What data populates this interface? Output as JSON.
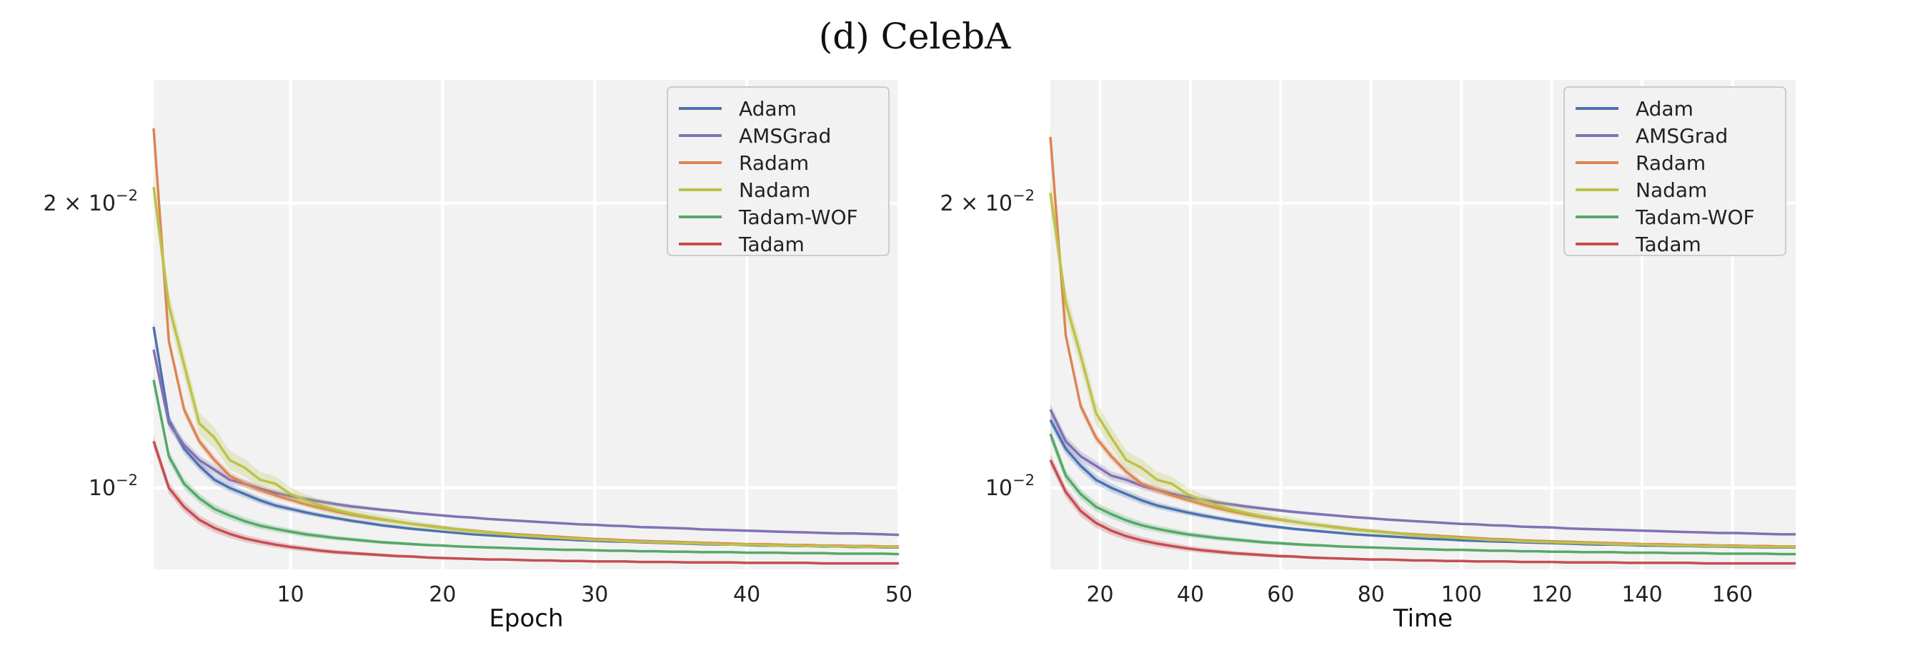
{
  "figure": {
    "title": "(d) CelebA"
  },
  "chart_data": [
    {
      "type": "line",
      "xlabel": "Epoch",
      "ylabel": "",
      "yscale": "log",
      "xlim": [
        1,
        50
      ],
      "ylim": [
        0.0082,
        0.027
      ],
      "xticks": [
        10,
        20,
        30,
        40,
        50
      ],
      "yticks": [
        {
          "value": 0.02,
          "base": "2 × 10",
          "exp": "−2"
        },
        {
          "value": 0.01,
          "base": "10",
          "exp": "−2"
        }
      ],
      "grid": true,
      "legend_position": "top-right",
      "x": [
        1,
        2,
        3,
        4,
        5,
        6,
        7,
        8,
        9,
        10,
        11,
        12,
        13,
        14,
        15,
        16,
        17,
        18,
        19,
        20,
        21,
        22,
        23,
        24,
        25,
        26,
        27,
        28,
        29,
        30,
        31,
        32,
        33,
        34,
        35,
        36,
        37,
        38,
        39,
        40,
        41,
        42,
        43,
        44,
        45,
        46,
        47,
        48,
        49,
        50
      ],
      "series": [
        {
          "name": "Adam",
          "color": "#4c72b0",
          "values": [
            0.0148,
            0.0118,
            0.011,
            0.01055,
            0.0102,
            0.01,
            0.00985,
            0.0097,
            0.00958,
            0.0095,
            0.00942,
            0.00935,
            0.00929,
            0.00923,
            0.00918,
            0.00913,
            0.00909,
            0.00905,
            0.00902,
            0.00899,
            0.00896,
            0.00893,
            0.00891,
            0.00889,
            0.00887,
            0.00885,
            0.00883,
            0.00882,
            0.0088,
            0.00879,
            0.00878,
            0.00877,
            0.00876,
            0.00875,
            0.00874,
            0.00873,
            0.00872,
            0.00871,
            0.00871,
            0.0087,
            0.00869,
            0.00869,
            0.00868,
            0.00868,
            0.00867,
            0.00867,
            0.00866,
            0.00866,
            0.00865,
            0.00865
          ]
        },
        {
          "name": "AMSGrad",
          "color": "#8172b3",
          "values": [
            0.014,
            0.0117,
            0.0111,
            0.0107,
            0.01045,
            0.0102,
            0.0101,
            0.00998,
            0.00988,
            0.0098,
            0.00973,
            0.00967,
            0.00961,
            0.00956,
            0.00952,
            0.00948,
            0.00945,
            0.00941,
            0.00938,
            0.00935,
            0.00932,
            0.0093,
            0.00927,
            0.00925,
            0.00923,
            0.00921,
            0.00919,
            0.00917,
            0.00915,
            0.00914,
            0.00912,
            0.00911,
            0.00909,
            0.00908,
            0.00907,
            0.00906,
            0.00904,
            0.00903,
            0.00902,
            0.00901,
            0.009,
            0.00899,
            0.00898,
            0.00897,
            0.00896,
            0.00895,
            0.00895,
            0.00894,
            0.00893,
            0.00892
          ]
        },
        {
          "name": "Radam",
          "color": "#dd8452",
          "values": [
            0.024,
            0.0143,
            0.0121,
            0.0112,
            0.0107,
            0.0103,
            0.0101,
            0.00995,
            0.00982,
            0.00971,
            0.00961,
            0.00952,
            0.00944,
            0.00937,
            0.00931,
            0.00926,
            0.00921,
            0.00916,
            0.00912,
            0.00908,
            0.00904,
            0.00901,
            0.00898,
            0.00895,
            0.00893,
            0.00891,
            0.00889,
            0.00887,
            0.00885,
            0.00883,
            0.00882,
            0.0088,
            0.00879,
            0.00878,
            0.00877,
            0.00876,
            0.00875,
            0.00874,
            0.00873,
            0.00872,
            0.00872,
            0.00871,
            0.0087,
            0.0087,
            0.00869,
            0.00869,
            0.00868,
            0.00868,
            0.00867,
            0.00867
          ]
        },
        {
          "name": "Nadam",
          "color": "#bcc24a",
          "values": [
            0.0208,
            0.0156,
            0.0135,
            0.0117,
            0.0113,
            0.0107,
            0.0105,
            0.0102,
            0.0101,
            0.00985,
            0.0097,
            0.00958,
            0.00948,
            0.0094,
            0.00933,
            0.00927,
            0.00921,
            0.00916,
            0.00911,
            0.00907,
            0.00903,
            0.009,
            0.00897,
            0.00894,
            0.00891,
            0.00889,
            0.00887,
            0.00885,
            0.00883,
            0.00881,
            0.0088,
            0.00878,
            0.00877,
            0.00876,
            0.00875,
            0.00874,
            0.00873,
            0.00872,
            0.00871,
            0.00871,
            0.0087,
            0.00869,
            0.00869,
            0.00868,
            0.00868,
            0.00867,
            0.00867,
            0.00866,
            0.00866,
            0.00866
          ]
        },
        {
          "name": "Tadam-WOF",
          "color": "#55a868",
          "values": [
            0.013,
            0.0108,
            0.0101,
            0.00975,
            0.0095,
            0.00935,
            0.00922,
            0.00912,
            0.00905,
            0.00899,
            0.00893,
            0.00889,
            0.00885,
            0.00882,
            0.00879,
            0.00876,
            0.00874,
            0.00872,
            0.0087,
            0.00869,
            0.00867,
            0.00866,
            0.00865,
            0.00864,
            0.00863,
            0.00862,
            0.00861,
            0.0086,
            0.0086,
            0.00859,
            0.00858,
            0.00858,
            0.00857,
            0.00857,
            0.00856,
            0.00856,
            0.00855,
            0.00855,
            0.00855,
            0.00854,
            0.00854,
            0.00854,
            0.00853,
            0.00853,
            0.00853,
            0.00852,
            0.00852,
            0.00852,
            0.00852,
            0.00851
          ]
        },
        {
          "name": "Tadam",
          "color": "#c44e52",
          "values": [
            0.0112,
            0.01,
            0.00955,
            0.00925,
            0.00907,
            0.00894,
            0.00884,
            0.00877,
            0.00871,
            0.00866,
            0.00862,
            0.00858,
            0.00855,
            0.00853,
            0.00851,
            0.00849,
            0.00847,
            0.00846,
            0.00844,
            0.00843,
            0.00842,
            0.00841,
            0.0084,
            0.0084,
            0.00839,
            0.00838,
            0.00838,
            0.00837,
            0.00837,
            0.00836,
            0.00836,
            0.00836,
            0.00835,
            0.00835,
            0.00835,
            0.00834,
            0.00834,
            0.00834,
            0.00834,
            0.00833,
            0.00833,
            0.00833,
            0.00833,
            0.00833,
            0.00832,
            0.00832,
            0.00832,
            0.00832,
            0.00832,
            0.00832
          ]
        }
      ]
    },
    {
      "type": "line",
      "xlabel": "Time",
      "ylabel": "",
      "yscale": "log",
      "xlim": [
        9,
        174
      ],
      "ylim": [
        0.0082,
        0.027
      ],
      "xticks": [
        20,
        40,
        60,
        80,
        100,
        120,
        140,
        160
      ],
      "yticks": [
        {
          "value": 0.02,
          "base": "2 × 10",
          "exp": "−2"
        },
        {
          "value": 0.01,
          "base": "10",
          "exp": "−2"
        }
      ],
      "grid": true,
      "legend_position": "top-right",
      "x": [
        9,
        12.4,
        15.7,
        19.1,
        22.5,
        25.8,
        29.2,
        32.6,
        35.9,
        39.3,
        42.7,
        46,
        49.4,
        52.8,
        56.1,
        59.5,
        62.9,
        66.2,
        69.6,
        73,
        76.3,
        79.7,
        83.1,
        86.4,
        89.8,
        93.2,
        96.5,
        99.9,
        103.3,
        106.6,
        110,
        113.4,
        116.7,
        120.1,
        123.5,
        126.8,
        130.2,
        133.6,
        136.9,
        140.3,
        143.7,
        147,
        150.4,
        153.8,
        157.1,
        160.5,
        163.9,
        167.2,
        170.6,
        174
      ],
      "series": [
        {
          "name": "Adam",
          "color": "#4c72b0",
          "values": [
            0.0118,
            0.011,
            0.01055,
            0.0102,
            0.01,
            0.00985,
            0.0097,
            0.00958,
            0.0095,
            0.00942,
            0.00935,
            0.00929,
            0.00923,
            0.00918,
            0.00913,
            0.00909,
            0.00905,
            0.00902,
            0.00899,
            0.00896,
            0.00893,
            0.00891,
            0.00889,
            0.00887,
            0.00885,
            0.00883,
            0.00882,
            0.0088,
            0.00879,
            0.00878,
            0.00877,
            0.00876,
            0.00875,
            0.00874,
            0.00873,
            0.00872,
            0.00871,
            0.00871,
            0.0087,
            0.00869,
            0.00869,
            0.00868,
            0.00868,
            0.00867,
            0.00867,
            0.00866,
            0.00866,
            0.00865,
            0.00865,
            0.00865
          ]
        },
        {
          "name": "AMSGrad",
          "color": "#8172b3",
          "values": [
            0.0121,
            0.0112,
            0.0108,
            0.01055,
            0.0103,
            0.0102,
            0.01005,
            0.00995,
            0.00986,
            0.00978,
            0.00971,
            0.00965,
            0.0096,
            0.00955,
            0.00951,
            0.00947,
            0.00943,
            0.0094,
            0.00937,
            0.00934,
            0.00931,
            0.00929,
            0.00926,
            0.00924,
            0.00922,
            0.0092,
            0.00918,
            0.00916,
            0.00915,
            0.00913,
            0.00912,
            0.0091,
            0.00909,
            0.00908,
            0.00906,
            0.00905,
            0.00904,
            0.00903,
            0.00902,
            0.00901,
            0.009,
            0.00899,
            0.00898,
            0.00897,
            0.00896,
            0.00896,
            0.00895,
            0.00894,
            0.00893,
            0.00893
          ]
        },
        {
          "name": "Radam",
          "color": "#dd8452",
          "values": [
            0.0235,
            0.0145,
            0.0122,
            0.0113,
            0.0108,
            0.0104,
            0.0101,
            0.00995,
            0.00982,
            0.00971,
            0.00961,
            0.00952,
            0.00944,
            0.00937,
            0.00931,
            0.00926,
            0.00921,
            0.00916,
            0.00912,
            0.00908,
            0.00904,
            0.00901,
            0.00898,
            0.00895,
            0.00893,
            0.00891,
            0.00889,
            0.00887,
            0.00885,
            0.00883,
            0.00882,
            0.0088,
            0.00879,
            0.00878,
            0.00877,
            0.00876,
            0.00875,
            0.00874,
            0.00873,
            0.00872,
            0.00872,
            0.00871,
            0.0087,
            0.0087,
            0.00869,
            0.00869,
            0.00868,
            0.00868,
            0.00867,
            0.00867
          ]
        },
        {
          "name": "Nadam",
          "color": "#bcc24a",
          "values": [
            0.0205,
            0.0157,
            0.0138,
            0.012,
            0.0113,
            0.0107,
            0.0105,
            0.0102,
            0.0101,
            0.00985,
            0.0097,
            0.00958,
            0.00948,
            0.0094,
            0.00933,
            0.00927,
            0.00921,
            0.00916,
            0.00911,
            0.00907,
            0.00903,
            0.009,
            0.00897,
            0.00894,
            0.00891,
            0.00889,
            0.00887,
            0.00885,
            0.00883,
            0.00881,
            0.0088,
            0.00878,
            0.00877,
            0.00876,
            0.00875,
            0.00874,
            0.00873,
            0.00872,
            0.00871,
            0.00871,
            0.0087,
            0.00869,
            0.00869,
            0.00868,
            0.00868,
            0.00867,
            0.00867,
            0.00866,
            0.00866,
            0.00866
          ]
        },
        {
          "name": "Tadam-WOF",
          "color": "#55a868",
          "values": [
            0.0114,
            0.0103,
            0.00985,
            0.00955,
            0.00938,
            0.00924,
            0.00913,
            0.00905,
            0.00899,
            0.00893,
            0.00889,
            0.00885,
            0.00882,
            0.00879,
            0.00876,
            0.00874,
            0.00872,
            0.0087,
            0.00869,
            0.00867,
            0.00866,
            0.00865,
            0.00864,
            0.00863,
            0.00862,
            0.00861,
            0.0086,
            0.0086,
            0.00859,
            0.00858,
            0.00858,
            0.00857,
            0.00857,
            0.00856,
            0.00856,
            0.00855,
            0.00855,
            0.00855,
            0.00854,
            0.00854,
            0.00854,
            0.00853,
            0.00853,
            0.00853,
            0.00852,
            0.00852,
            0.00852,
            0.00852,
            0.00851,
            0.00851
          ]
        },
        {
          "name": "Tadam",
          "color": "#c44e52",
          "values": [
            0.0107,
            0.0099,
            0.00945,
            0.00918,
            0.00901,
            0.00889,
            0.0088,
            0.00873,
            0.00868,
            0.00863,
            0.00859,
            0.00856,
            0.00853,
            0.00851,
            0.00849,
            0.00847,
            0.00846,
            0.00844,
            0.00843,
            0.00842,
            0.00841,
            0.0084,
            0.0084,
            0.00839,
            0.00838,
            0.00838,
            0.00837,
            0.00837,
            0.00836,
            0.00836,
            0.00836,
            0.00835,
            0.00835,
            0.00835,
            0.00834,
            0.00834,
            0.00834,
            0.00834,
            0.00833,
            0.00833,
            0.00833,
            0.00833,
            0.00833,
            0.00832,
            0.00832,
            0.00832,
            0.00832,
            0.00832,
            0.00832,
            0.00832
          ]
        }
      ]
    }
  ]
}
